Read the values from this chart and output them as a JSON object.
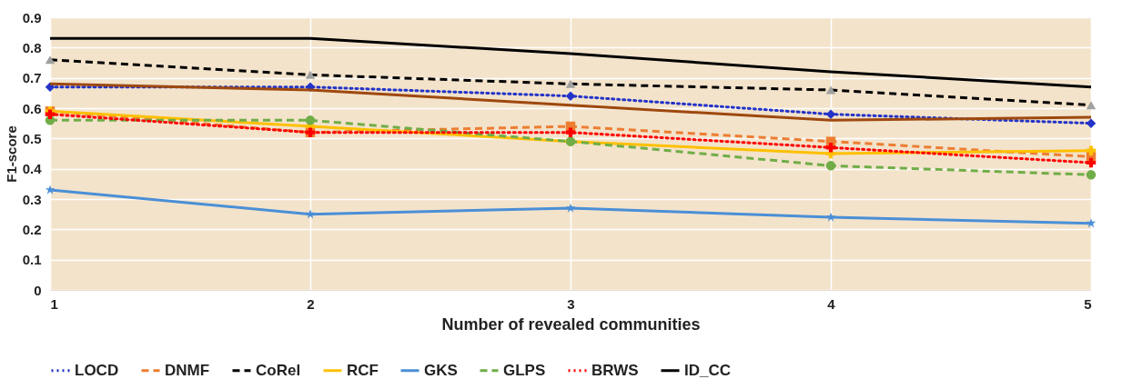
{
  "chart_data": {
    "type": "line",
    "xlabel": "Number of revealed communities",
    "ylabel": "F1-score",
    "x": [
      1,
      2,
      3,
      4,
      5
    ],
    "xlim": [
      1,
      5
    ],
    "xticks": [
      1,
      2,
      3,
      4,
      5
    ],
    "ylim": [
      0,
      0.9
    ],
    "yticks": [
      0,
      0.1,
      0.2,
      0.3,
      0.4,
      0.5,
      0.6,
      0.7,
      0.8,
      0.9
    ],
    "grid": true,
    "legend": "bottom",
    "series": [
      {
        "name": "LOCD",
        "color": "#2333c8",
        "marker": "diamond",
        "line_style": "dotted",
        "values": [
          0.67,
          0.67,
          0.64,
          0.58,
          0.55
        ]
      },
      {
        "name": "DNMF",
        "color": "#ed7d31",
        "marker": "square",
        "line_style": "dashed",
        "values": [
          0.59,
          0.52,
          0.54,
          0.49,
          0.44
        ]
      },
      {
        "name": "CoRel",
        "color": "#000000",
        "marker": "triangle",
        "line_style": "dashed",
        "values": [
          0.76,
          0.71,
          0.68,
          0.66,
          0.61
        ]
      },
      {
        "name": "RCF",
        "color": "#ffc000",
        "marker": "cross",
        "line_style": "solid",
        "values": [
          0.59,
          0.54,
          0.49,
          0.45,
          0.46
        ]
      },
      {
        "name": "GKS",
        "color": "#4a8fd6",
        "marker": "star",
        "line_style": "solid",
        "values": [
          0.33,
          0.25,
          0.27,
          0.24,
          0.22
        ]
      },
      {
        "name": "GLPS",
        "color": "#70ad47",
        "marker": "circle",
        "line_style": "dashed",
        "values": [
          0.56,
          0.56,
          0.49,
          0.41,
          0.38
        ]
      },
      {
        "name": "BRWS",
        "color": "#ff0000",
        "marker": "cross",
        "line_style": "dotted",
        "values": [
          0.58,
          0.52,
          0.52,
          0.47,
          0.42
        ]
      },
      {
        "color": "#9e480e",
        "marker": "none",
        "line_style": "solid",
        "values": [
          0.68,
          0.66,
          0.61,
          0.56,
          0.57
        ]
      },
      {
        "name": "ID_CC",
        "color": "#000000",
        "marker": "none",
        "line_style": "solid",
        "values": [
          0.83,
          0.83,
          0.78,
          0.72,
          0.67
        ]
      }
    ]
  }
}
